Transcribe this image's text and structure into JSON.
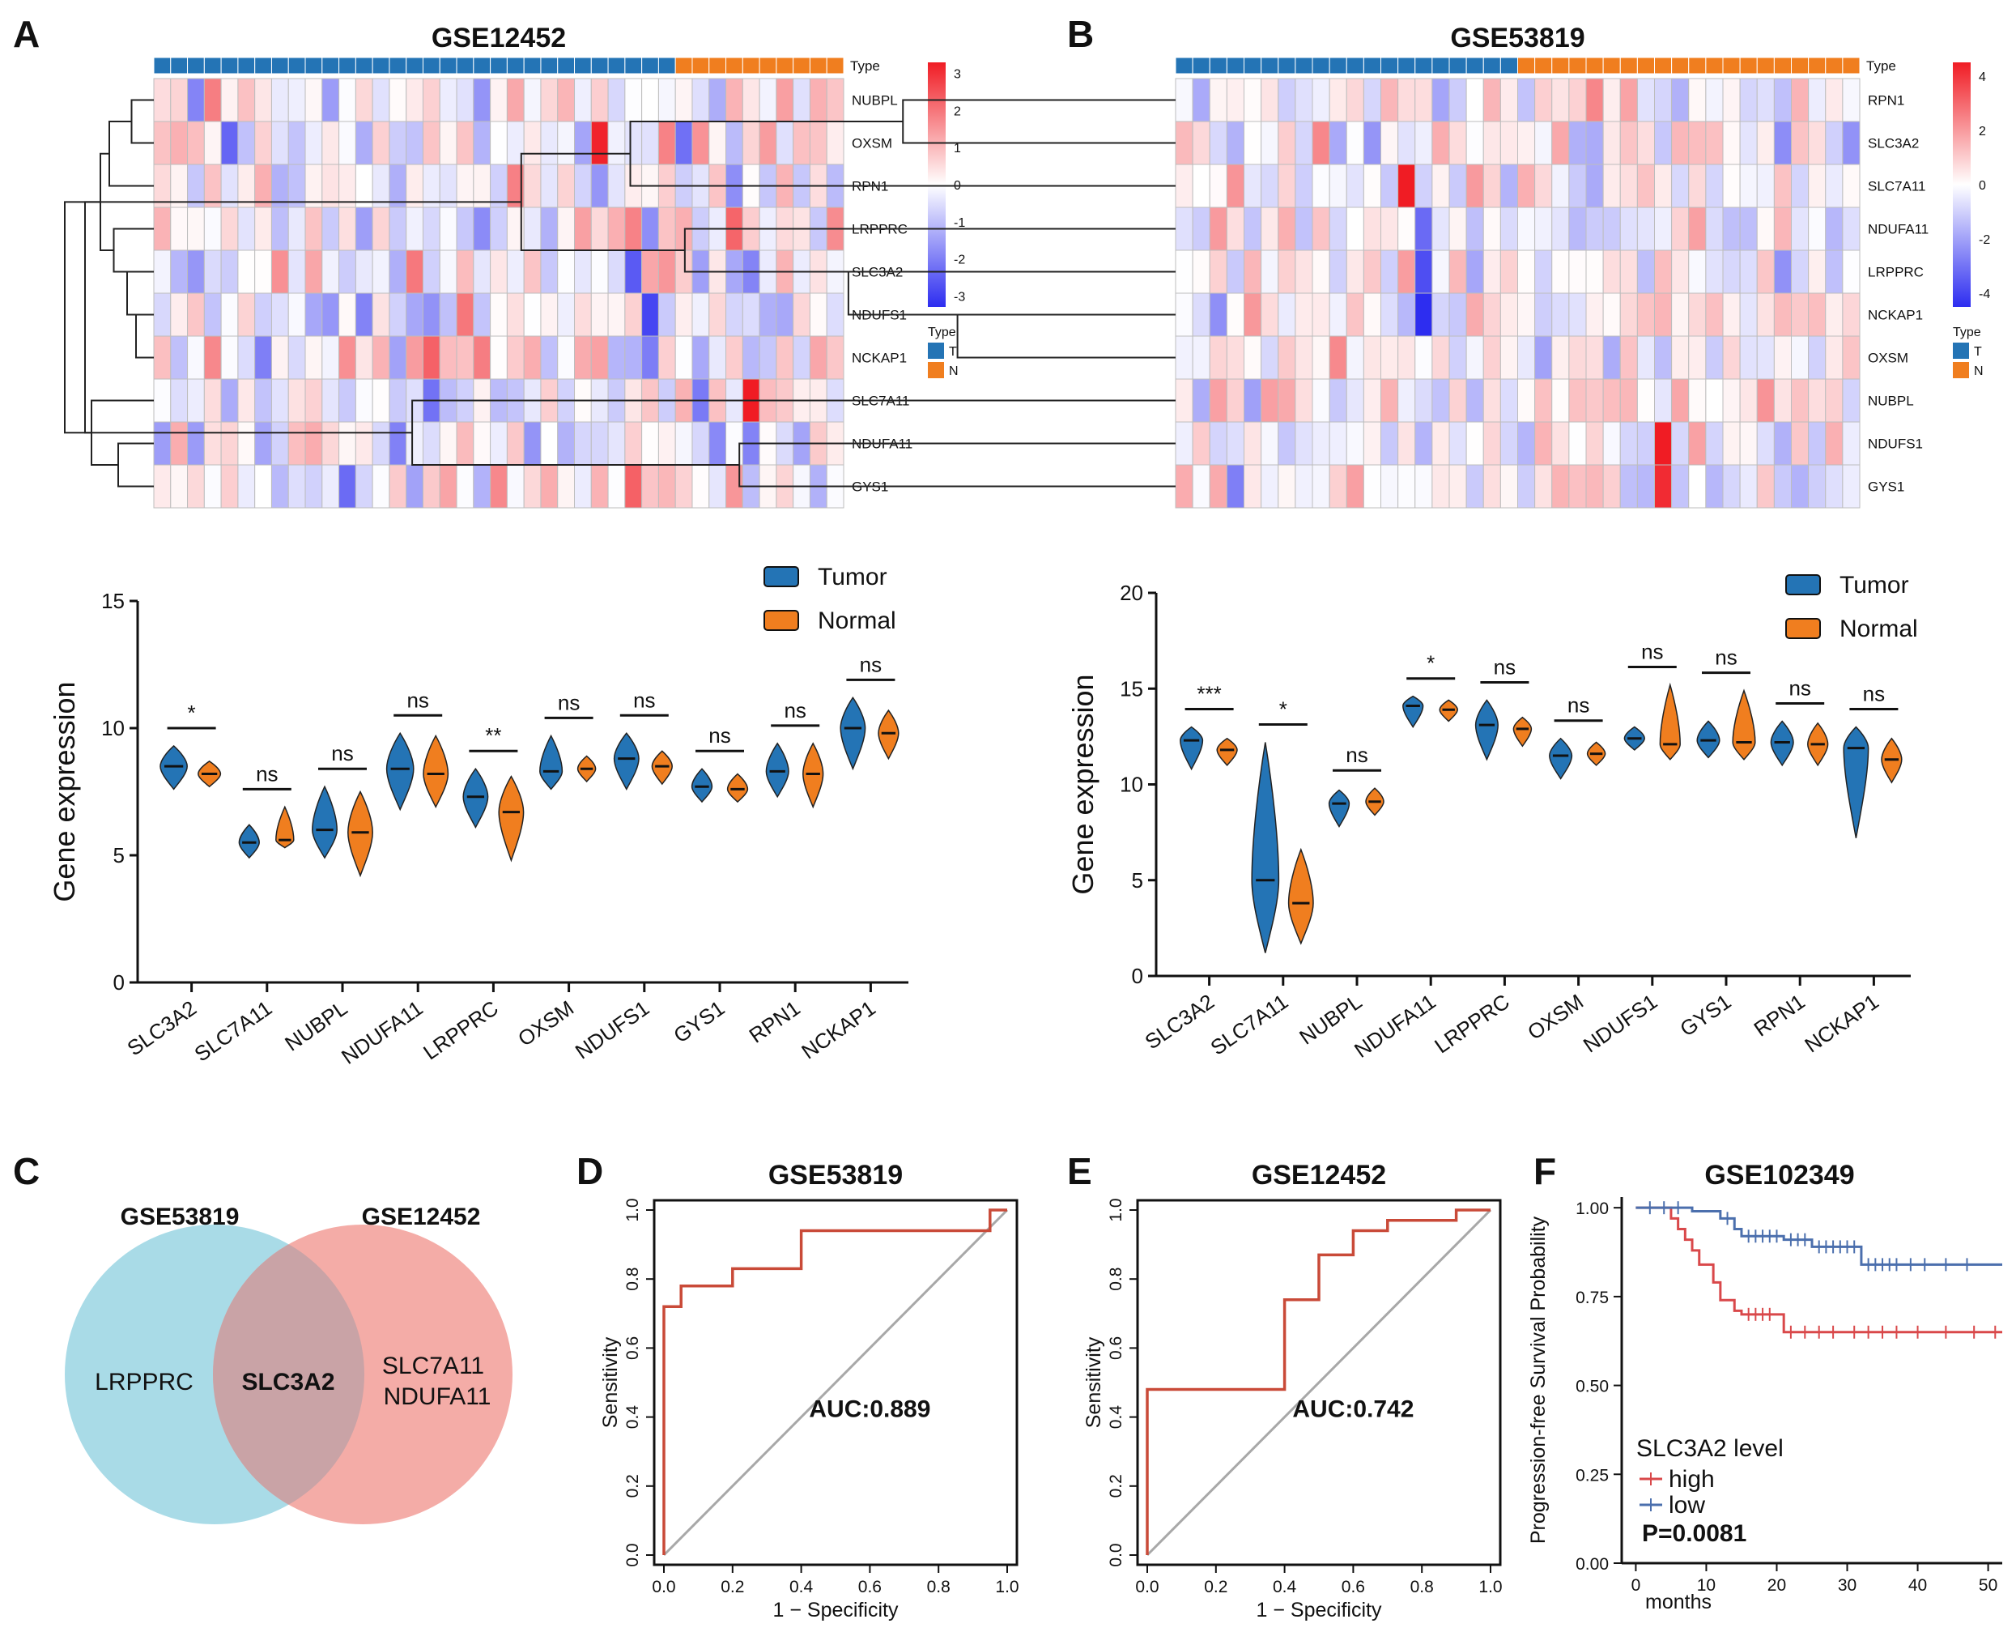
{
  "colors": {
    "tumor": "#2474b5",
    "normal": "#f07e1f",
    "hm_low": "#2d2df0",
    "hm_mid": "#ffffff",
    "hm_high": "#f01c24",
    "roc": "#c94a38",
    "diag": "#a8a8a8",
    "km_high": "#d9484a",
    "km_low": "#4b6fad",
    "venn_left": "#a9dbe7",
    "venn_right": "#f4aca7",
    "venn_overlap": "#c9a3a6",
    "venn_left_title": "#4ab8cf",
    "venn_right_title": "#d94f38"
  },
  "chart_data": [
    {
      "panel": "A",
      "type": "heatmap",
      "title": "GSE12452",
      "annotation_label": "Type",
      "groups": [
        {
          "name": "T",
          "count": 31
        },
        {
          "name": "N",
          "count": 10
        }
      ],
      "genes": [
        "NUBPL",
        "OXSM",
        "RPN1",
        "LRPPRC",
        "SLC3A2",
        "NDUFS1",
        "NCKAP1",
        "SLC7A11",
        "NDUFA11",
        "GYS1"
      ],
      "colorbar_ticks": [
        "3",
        "2",
        "1",
        "0",
        "-1",
        "-2",
        "-3"
      ],
      "colorbar_range": [
        -3.3,
        3.3
      ],
      "legend_title": "Type",
      "legend_items": [
        "T",
        "N"
      ],
      "seed": 7,
      "hot_cells": [
        [
          1,
          26,
          3.2
        ],
        [
          7,
          35,
          3.5
        ],
        [
          9,
          28,
          2.3
        ],
        [
          4,
          28,
          -2.6
        ],
        [
          5,
          29,
          -2.9
        ]
      ]
    },
    {
      "panel": "B",
      "type": "heatmap",
      "title": "GSE53819",
      "annotation_label": "Type",
      "groups": [
        {
          "name": "T",
          "count": 20
        },
        {
          "name": "N",
          "count": 20
        }
      ],
      "genes": [
        "RPN1",
        "SLC3A2",
        "SLC7A11",
        "NDUFA11",
        "LRPPRC",
        "NCKAP1",
        "OXSM",
        "NUBPL",
        "NDUFS1",
        "GYS1"
      ],
      "colorbar_ticks": [
        "4",
        "2",
        "0",
        "-2",
        "-4"
      ],
      "colorbar_range": [
        -4.5,
        4.5
      ],
      "legend_title": "Type",
      "legend_items": [
        "T",
        "N"
      ],
      "seed": 13,
      "hot_cells": [
        [
          2,
          13,
          4.5
        ],
        [
          8,
          28,
          4.6
        ],
        [
          9,
          28,
          4.2
        ],
        [
          5,
          14,
          -4.5
        ],
        [
          4,
          14,
          -3.8
        ],
        [
          3,
          14,
          -3.2
        ]
      ]
    },
    {
      "panel": "A",
      "type": "violin",
      "ylabel": "Gene expression",
      "ylim": [
        0,
        15
      ],
      "yticks": [
        "0",
        "5",
        "10",
        "15"
      ],
      "legend": [
        "Tumor",
        "Normal"
      ],
      "categories": [
        "SLC3A2",
        "SLC7A11",
        "NUBPL",
        "NDUFA11",
        "LRPPRC",
        "OXSM",
        "NDUFS1",
        "GYS1",
        "RPN1",
        "NCKAP1"
      ],
      "significance": [
        "*",
        "ns",
        "ns",
        "ns",
        "**",
        "ns",
        "ns",
        "ns",
        "ns",
        "ns"
      ],
      "tumor": [
        {
          "median": 8.5,
          "min": 7.6,
          "max": 9.3,
          "spread": 0.9
        },
        {
          "median": 5.5,
          "min": 4.9,
          "max": 6.2,
          "spread": 0.6
        },
        {
          "median": 6.0,
          "min": 4.9,
          "max": 7.7,
          "spread": 0.8
        },
        {
          "median": 8.4,
          "min": 6.8,
          "max": 9.8,
          "spread": 0.9
        },
        {
          "median": 7.3,
          "min": 6.1,
          "max": 8.4,
          "spread": 0.8
        },
        {
          "median": 8.3,
          "min": 7.6,
          "max": 9.7,
          "spread": 0.7
        },
        {
          "median": 8.8,
          "min": 7.6,
          "max": 9.8,
          "spread": 0.8
        },
        {
          "median": 7.7,
          "min": 7.1,
          "max": 8.4,
          "spread": 0.6
        },
        {
          "median": 8.3,
          "min": 7.3,
          "max": 9.4,
          "spread": 0.7
        },
        {
          "median": 10.0,
          "min": 8.4,
          "max": 11.2,
          "spread": 0.8
        }
      ],
      "normal": [
        {
          "median": 8.2,
          "min": 7.7,
          "max": 8.7,
          "spread": 0.7
        },
        {
          "median": 5.6,
          "min": 5.3,
          "max": 6.9,
          "spread": 0.5
        },
        {
          "median": 5.9,
          "min": 4.2,
          "max": 7.5,
          "spread": 0.8
        },
        {
          "median": 8.2,
          "min": 6.9,
          "max": 9.7,
          "spread": 0.8
        },
        {
          "median": 6.7,
          "min": 4.8,
          "max": 8.1,
          "spread": 0.8
        },
        {
          "median": 8.4,
          "min": 7.9,
          "max": 8.9,
          "spread": 0.5
        },
        {
          "median": 8.5,
          "min": 7.8,
          "max": 9.1,
          "spread": 0.6
        },
        {
          "median": 7.6,
          "min": 7.1,
          "max": 8.2,
          "spread": 0.6
        },
        {
          "median": 8.2,
          "min": 6.9,
          "max": 9.4,
          "spread": 0.6
        },
        {
          "median": 9.8,
          "min": 8.8,
          "max": 10.7,
          "spread": 0.6
        }
      ]
    },
    {
      "panel": "B",
      "type": "violin",
      "ylabel": "Gene expression",
      "ylim": [
        0,
        20
      ],
      "yticks": [
        "0",
        "5",
        "10",
        "15",
        "20"
      ],
      "legend": [
        "Tumor",
        "Normal"
      ],
      "categories": [
        "SLC3A2",
        "SLC7A11",
        "NUBPL",
        "NDUFA11",
        "LRPPRC",
        "OXSM",
        "NDUFS1",
        "GYS1",
        "RPN1",
        "NCKAP1"
      ],
      "significance": [
        "***",
        "*",
        "ns",
        "*",
        "ns",
        "ns",
        "ns",
        "ns",
        "ns",
        "ns"
      ],
      "tumor": [
        {
          "median": 12.3,
          "min": 10.8,
          "max": 13.0,
          "spread": 0.7
        },
        {
          "median": 5.0,
          "min": 1.2,
          "max": 12.2,
          "spread": 0.9
        },
        {
          "median": 9.0,
          "min": 7.8,
          "max": 9.7,
          "spread": 0.6
        },
        {
          "median": 14.1,
          "min": 13.0,
          "max": 14.6,
          "spread": 0.6
        },
        {
          "median": 13.1,
          "min": 11.3,
          "max": 14.4,
          "spread": 0.7
        },
        {
          "median": 11.5,
          "min": 10.3,
          "max": 12.4,
          "spread": 0.7
        },
        {
          "median": 12.4,
          "min": 11.8,
          "max": 13.0,
          "spread": 0.6
        },
        {
          "median": 12.3,
          "min": 11.4,
          "max": 13.3,
          "spread": 0.7
        },
        {
          "median": 12.2,
          "min": 11.0,
          "max": 13.3,
          "spread": 0.7
        },
        {
          "median": 11.9,
          "min": 7.2,
          "max": 13.0,
          "spread": 0.8
        }
      ],
      "normal": [
        {
          "median": 11.8,
          "min": 11.0,
          "max": 12.4,
          "spread": 0.6
        },
        {
          "median": 3.8,
          "min": 1.7,
          "max": 6.6,
          "spread": 0.8
        },
        {
          "median": 9.1,
          "min": 8.4,
          "max": 9.8,
          "spread": 0.5
        },
        {
          "median": 13.9,
          "min": 13.3,
          "max": 14.4,
          "spread": 0.5
        },
        {
          "median": 12.9,
          "min": 12.0,
          "max": 13.5,
          "spread": 0.5
        },
        {
          "median": 11.6,
          "min": 11.0,
          "max": 12.2,
          "spread": 0.5
        },
        {
          "median": 12.1,
          "min": 11.3,
          "max": 15.2,
          "spread": 0.6
        },
        {
          "median": 12.2,
          "min": 11.3,
          "max": 14.9,
          "spread": 0.7
        },
        {
          "median": 12.1,
          "min": 11.0,
          "max": 13.2,
          "spread": 0.6
        },
        {
          "median": 11.3,
          "min": 10.1,
          "max": 12.4,
          "spread": 0.6
        }
      ]
    },
    {
      "panel": "C",
      "type": "venn",
      "sets": [
        {
          "name": "GSE53819",
          "only": [
            "LRPPRC"
          ]
        },
        {
          "name": "GSE12452",
          "only": [
            "SLC7A11",
            "NDUFA11"
          ]
        }
      ],
      "intersection": [
        "SLC3A2"
      ]
    },
    {
      "panel": "D",
      "type": "line",
      "title": "GSE53819",
      "xlabel": "1 − Specificity",
      "ylabel": "Sensitivity",
      "xlim": [
        0,
        1
      ],
      "ylim": [
        0,
        1
      ],
      "xticks": [
        "0.0",
        "0.2",
        "0.4",
        "0.6",
        "0.8",
        "1.0"
      ],
      "yticks": [
        "0.0",
        "0.2",
        "0.4",
        "0.6",
        "0.8",
        "1.0"
      ],
      "auc_label": "AUC:0.889",
      "x": [
        0,
        0,
        0.05,
        0.05,
        0.2,
        0.2,
        0.4,
        0.4,
        0.95,
        0.95,
        1
      ],
      "y": [
        0,
        0.72,
        0.72,
        0.78,
        0.78,
        0.83,
        0.83,
        0.94,
        0.94,
        1,
        1
      ]
    },
    {
      "panel": "E",
      "type": "line",
      "title": "GSE12452",
      "xlabel": "1 − Specificity",
      "ylabel": "Sensitivity",
      "xlim": [
        0,
        1
      ],
      "ylim": [
        0,
        1
      ],
      "xticks": [
        "0.0",
        "0.2",
        "0.4",
        "0.6",
        "0.8",
        "1.0"
      ],
      "yticks": [
        "0.0",
        "0.2",
        "0.4",
        "0.6",
        "0.8",
        "1.0"
      ],
      "auc_label": "AUC:0.742",
      "x": [
        0,
        0,
        0.4,
        0.4,
        0.5,
        0.5,
        0.6,
        0.6,
        0.7,
        0.7,
        0.9,
        0.9,
        1
      ],
      "y": [
        0,
        0.48,
        0.48,
        0.74,
        0.74,
        0.87,
        0.87,
        0.94,
        0.94,
        0.97,
        0.97,
        1,
        1
      ]
    },
    {
      "panel": "F",
      "type": "line",
      "title": "GSE102349",
      "xlabel": "months",
      "ylabel": "Progression-free Survival Probability",
      "xlim": [
        -2,
        52
      ],
      "ylim": [
        0,
        1.03
      ],
      "xticks": [
        "0",
        "10",
        "20",
        "30",
        "40",
        "50"
      ],
      "yticks": [
        "0.00",
        "0.25",
        "0.50",
        "0.75",
        "1.00"
      ],
      "legend_title": "SLC3A2 level",
      "legend": [
        "high",
        "low"
      ],
      "pvalue_label": "P=0.0081",
      "series": [
        {
          "name": "high",
          "x": [
            0,
            5,
            5,
            6,
            6,
            7,
            7,
            8,
            8,
            9,
            9,
            11,
            11,
            12,
            12,
            14,
            14,
            15,
            15,
            21,
            21,
            52
          ],
          "y": [
            1,
            1,
            0.97,
            0.97,
            0.94,
            0.94,
            0.91,
            0.91,
            0.88,
            0.88,
            0.84,
            0.84,
            0.79,
            0.79,
            0.74,
            0.74,
            0.71,
            0.71,
            0.7,
            0.7,
            0.65,
            0.65
          ],
          "censor_x": [
            16,
            17,
            18,
            19,
            22,
            24,
            26,
            28,
            31,
            33,
            35,
            37,
            40,
            44,
            48,
            51
          ]
        },
        {
          "name": "low",
          "x": [
            0,
            8,
            8,
            12,
            12,
            14,
            14,
            15,
            15,
            21,
            21,
            25,
            25,
            32,
            32,
            52
          ],
          "y": [
            1,
            1,
            0.99,
            0.99,
            0.97,
            0.97,
            0.94,
            0.94,
            0.92,
            0.92,
            0.91,
            0.91,
            0.89,
            0.89,
            0.84,
            0.84
          ],
          "censor_x": [
            2,
            4,
            6,
            13,
            16,
            17,
            18,
            19,
            20,
            22,
            23,
            24,
            26,
            27,
            28,
            29,
            30,
            31,
            33,
            34,
            35,
            36,
            37,
            39,
            41,
            44,
            47
          ]
        }
      ]
    }
  ],
  "venn_titles": [
    "GSE53819",
    "GSE12452"
  ]
}
